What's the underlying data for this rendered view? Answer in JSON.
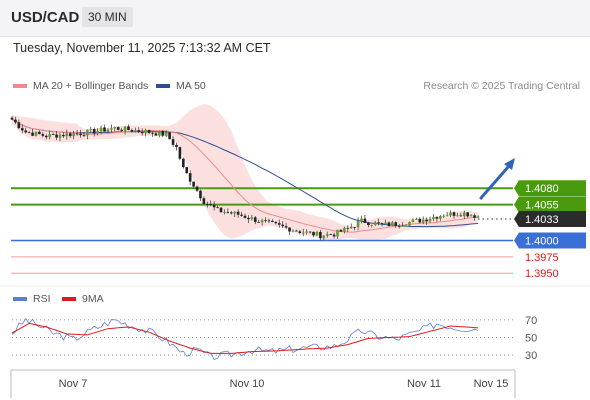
{
  "header": {
    "pair": "USD/CAD",
    "timeframe": "30 MIN"
  },
  "datetime": "Tuesday, November 11, 2025 7:13:32 AM CET",
  "legend": {
    "ma20_bb": {
      "label": "MA 20 + Bollinger Bands",
      "color": "#f08a8a"
    },
    "ma50": {
      "label": "MA 50",
      "color": "#2e4f8f"
    }
  },
  "credit": "Research © 2025 Trading Central",
  "rsi_legend": {
    "rsi": {
      "label": "RSI",
      "color": "#5b7fd6"
    },
    "ma9": {
      "label": "9MA",
      "color": "#e01818"
    }
  },
  "colors": {
    "resistance": "#4a9a0e",
    "pivot": "#3b6fd8",
    "support": "#f49b9b",
    "support_text": "#e01818",
    "current_bg": "#2b2b2b",
    "bb_fill": "#fbd5d5",
    "arrow": "#2f64b8"
  },
  "chart_data": [
    {
      "type": "candlestick",
      "title": "",
      "ylim": [
        1.3935,
        1.4215
      ],
      "x_labels": [
        "Nov 7",
        "Nov 10",
        "Nov 11",
        "Nov 15"
      ],
      "levels": [
        {
          "value": 1.408,
          "label": "1.4080",
          "kind": "resistance"
        },
        {
          "value": 1.4055,
          "label": "1.4055",
          "kind": "resistance"
        },
        {
          "value": 1.4033,
          "label": "1.4033",
          "kind": "current"
        },
        {
          "value": 1.4,
          "label": "1.4000",
          "kind": "pivot"
        },
        {
          "value": 1.3975,
          "label": "1.3975",
          "kind": "support"
        },
        {
          "value": 1.395,
          "label": "1.3950",
          "kind": "support"
        }
      ],
      "anchors": [
        [
          0,
          1.4185
        ],
        [
          4,
          1.4166
        ],
        [
          10,
          1.416
        ],
        [
          20,
          1.4164
        ],
        [
          30,
          1.4172
        ],
        [
          40,
          1.4166
        ],
        [
          45,
          1.4162
        ],
        [
          48,
          1.4142
        ],
        [
          50,
          1.411
        ],
        [
          53,
          1.4085
        ],
        [
          56,
          1.406
        ],
        [
          60,
          1.4046
        ],
        [
          66,
          1.404
        ],
        [
          72,
          1.403
        ],
        [
          78,
          1.4022
        ],
        [
          84,
          1.4014
        ],
        [
          90,
          1.4008
        ],
        [
          94,
          1.401
        ],
        [
          98,
          1.4018
        ],
        [
          102,
          1.403
        ],
        [
          108,
          1.4024
        ],
        [
          114,
          1.4026
        ],
        [
          120,
          1.4032
        ],
        [
          126,
          1.404
        ],
        [
          132,
          1.4042
        ],
        [
          136,
          1.4037
        ]
      ],
      "n_candles": 137
    },
    {
      "type": "line",
      "title": "",
      "series_names": [
        "RSI",
        "9MA"
      ],
      "ylim": [
        20,
        80
      ],
      "y_ticks": [
        70,
        50,
        30
      ],
      "rsi": [
        [
          0,
          55
        ],
        [
          4,
          70
        ],
        [
          8,
          63
        ],
        [
          12,
          55
        ],
        [
          18,
          48
        ],
        [
          24,
          60
        ],
        [
          30,
          70
        ],
        [
          36,
          62
        ],
        [
          42,
          54
        ],
        [
          46,
          44
        ],
        [
          50,
          32
        ],
        [
          54,
          36
        ],
        [
          58,
          28
        ],
        [
          64,
          31
        ],
        [
          70,
          36
        ],
        [
          76,
          34
        ],
        [
          82,
          37
        ],
        [
          88,
          39
        ],
        [
          94,
          40
        ],
        [
          98,
          48
        ],
        [
          102,
          58
        ],
        [
          106,
          52
        ],
        [
          112,
          48
        ],
        [
          118,
          56
        ],
        [
          124,
          66
        ],
        [
          130,
          61
        ],
        [
          136,
          60
        ]
      ],
      "ma9": [
        [
          0,
          55
        ],
        [
          5,
          66
        ],
        [
          10,
          62
        ],
        [
          16,
          54
        ],
        [
          22,
          53
        ],
        [
          28,
          60
        ],
        [
          34,
          62
        ],
        [
          40,
          56
        ],
        [
          46,
          46
        ],
        [
          52,
          38
        ],
        [
          58,
          32
        ],
        [
          64,
          32
        ],
        [
          70,
          34
        ],
        [
          78,
          35
        ],
        [
          86,
          37
        ],
        [
          92,
          38
        ],
        [
          98,
          42
        ],
        [
          104,
          49
        ],
        [
          110,
          50
        ],
        [
          116,
          51
        ],
        [
          122,
          57
        ],
        [
          128,
          63
        ],
        [
          136,
          61
        ]
      ]
    }
  ]
}
